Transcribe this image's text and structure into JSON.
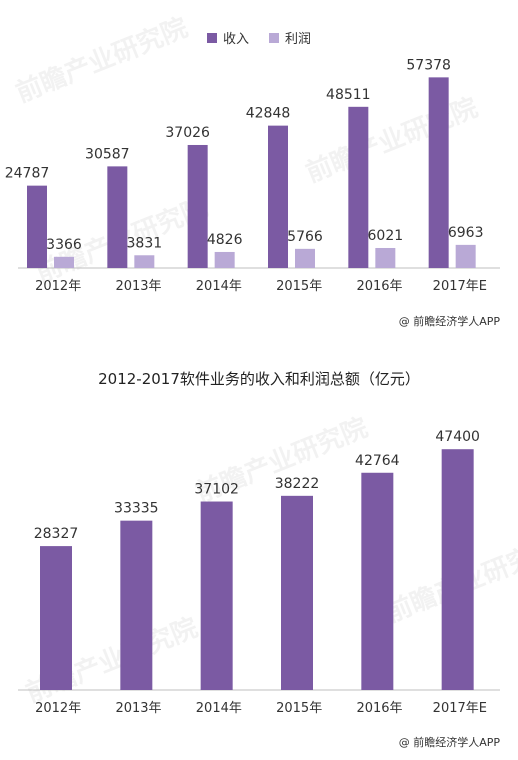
{
  "colors": {
    "income": "#7b5aa3",
    "profit": "#b9a9d6",
    "axis": "#bfbfbf",
    "text": "#333333"
  },
  "watermark_text": "前瞻产业研究院",
  "chart_data": [
    {
      "type": "bar",
      "categories": [
        "2012年",
        "2013年",
        "2014年",
        "2015年",
        "2016年",
        "2017年E"
      ],
      "series": [
        {
          "name": "收入",
          "values": [
            24787,
            30587,
            37026,
            42848,
            48511,
            57378
          ]
        },
        {
          "name": "利润",
          "values": [
            3366,
            3831,
            4826,
            5766,
            6021,
            6963
          ]
        }
      ],
      "ylim": [
        0,
        62000
      ],
      "legend": "top-center",
      "grid": false,
      "source": "@ 前瞻经济学人APP"
    },
    {
      "type": "bar",
      "title": "2012-2017软件业务的收入和利润总额（亿元）",
      "categories": [
        "2012年",
        "2013年",
        "2014年",
        "2015年",
        "2016年",
        "2017年E"
      ],
      "series": [
        {
          "values": [
            28327,
            33335,
            37102,
            38222,
            42764,
            47400
          ]
        }
      ],
      "ylim": [
        0,
        50000
      ],
      "grid": false,
      "source": "@ 前瞻经济学人APP"
    }
  ]
}
